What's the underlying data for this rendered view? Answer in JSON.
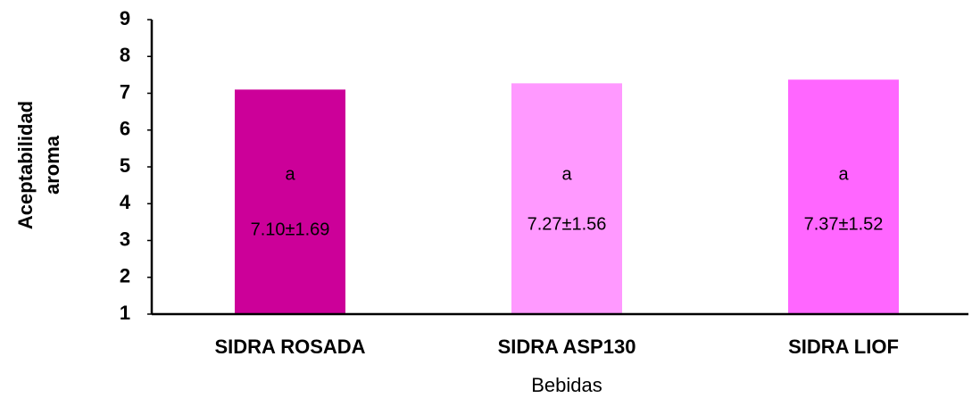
{
  "chart_data": {
    "type": "bar",
    "ylabel": [
      "Aceptabilidad",
      "aroma"
    ],
    "xlabel": "Bebidas",
    "categories": [
      "SIDRA ROSADA",
      "SIDRA ASP130",
      "SIDRA LIOF"
    ],
    "values": [
      7.1,
      7.27,
      7.37
    ],
    "value_labels": [
      "7.10±1.69",
      "7.27±1.56",
      "7.37±1.52"
    ],
    "annotations": [
      "a",
      "a",
      "a"
    ],
    "colors": [
      "#cc0099",
      "#ff99ff",
      "#ff66ff"
    ],
    "ylim": [
      1,
      9
    ],
    "yticks": [
      1,
      2,
      3,
      4,
      5,
      6,
      7,
      8,
      9
    ],
    "grid": false
  }
}
